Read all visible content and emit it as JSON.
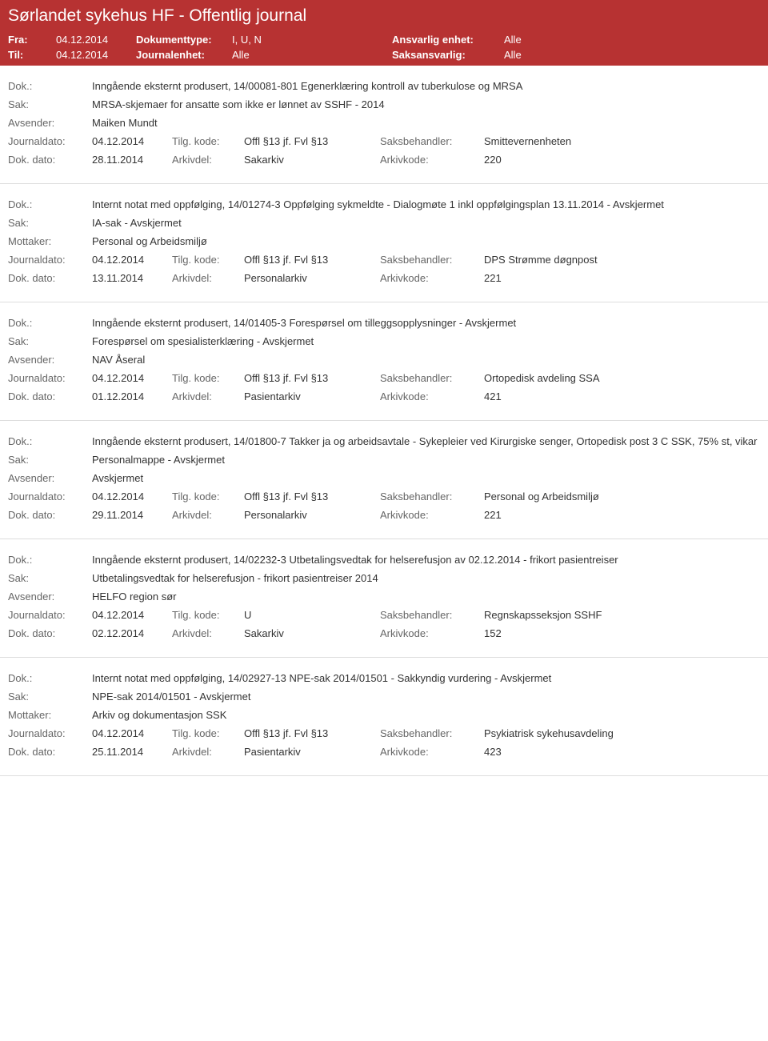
{
  "colors": {
    "header_bg": "#b73232",
    "header_text": "#ffffff",
    "body_text": "#333333",
    "label_text": "#666666",
    "border": "#dddddd"
  },
  "header": {
    "title": "Sørlandet sykehus HF - Offentlig journal",
    "fra_label": "Fra:",
    "fra_value": "04.12.2014",
    "til_label": "Til:",
    "til_value": "04.12.2014",
    "doktype_label": "Dokumenttype:",
    "doktype_value": "I, U, N",
    "journalenhet_label": "Journalenhet:",
    "journalenhet_value": "Alle",
    "ansvarlig_label": "Ansvarlig enhet:",
    "ansvarlig_value": "Alle",
    "saksansvarlig_label": "Saksansvarlig:",
    "saksansvarlig_value": "Alle"
  },
  "labels": {
    "dok": "Dok.:",
    "sak": "Sak:",
    "avsender": "Avsender:",
    "mottaker": "Mottaker:",
    "journaldato": "Journaldato:",
    "tilgkode": "Tilg. kode:",
    "saksbehandler": "Saksbehandler:",
    "dokdato": "Dok. dato:",
    "arkivdel": "Arkivdel:",
    "arkivkode": "Arkivkode:"
  },
  "entries": [
    {
      "dok": "Inngående eksternt produsert, 14/00081-801 Egenerklæring kontroll av tuberkulose og MRSA",
      "sak": "MRSA-skjemaer for ansatte som ikke er lønnet av SSHF - 2014",
      "party_label": "Avsender:",
      "party": "Maiken Mundt",
      "journaldato": "04.12.2014",
      "tilgkode": "Offl §13 jf. Fvl §13",
      "saksbehandler": "Smittevernenheten",
      "dokdato": "28.11.2014",
      "arkivdel": "Sakarkiv",
      "arkivkode": "220"
    },
    {
      "dok": "Internt notat med oppfølging, 14/01274-3 Oppfølging sykmeldte - Dialogmøte 1 inkl oppfølgingsplan 13.11.2014 - Avskjermet",
      "sak": "IA-sak - Avskjermet",
      "party_label": "Mottaker:",
      "party": "Personal og Arbeidsmiljø",
      "journaldato": "04.12.2014",
      "tilgkode": "Offl §13 jf. Fvl §13",
      "saksbehandler": "DPS Strømme døgnpost",
      "dokdato": "13.11.2014",
      "arkivdel": "Personalarkiv",
      "arkivkode": "221"
    },
    {
      "dok": "Inngående eksternt produsert, 14/01405-3 Forespørsel om tilleggsopplysninger - Avskjermet",
      "sak": "Forespørsel om spesialisterklæring - Avskjermet",
      "party_label": "Avsender:",
      "party": "NAV Åseral",
      "journaldato": "04.12.2014",
      "tilgkode": "Offl §13 jf. Fvl §13",
      "saksbehandler": "Ortopedisk avdeling SSA",
      "dokdato": "01.12.2014",
      "arkivdel": "Pasientarkiv",
      "arkivkode": "421"
    },
    {
      "dok": "Inngående eksternt produsert, 14/01800-7 Takker ja og arbeidsavtale - Sykepleier ved Kirurgiske senger, Ortopedisk post 3 C SSK, 75% st, vikar",
      "sak": "Personalmappe - Avskjermet",
      "party_label": "Avsender:",
      "party": "Avskjermet",
      "journaldato": "04.12.2014",
      "tilgkode": "Offl §13 jf. Fvl §13",
      "saksbehandler": "Personal og Arbeidsmiljø",
      "dokdato": "29.11.2014",
      "arkivdel": "Personalarkiv",
      "arkivkode": "221"
    },
    {
      "dok": "Inngående eksternt produsert, 14/02232-3 Utbetalingsvedtak for helserefusjon av 02.12.2014 - frikort pasientreiser",
      "sak": "Utbetalingsvedtak for helserefusjon - frikort pasientreiser 2014",
      "party_label": "Avsender:",
      "party": "HELFO region sør",
      "journaldato": "04.12.2014",
      "tilgkode": "U",
      "saksbehandler": "Regnskapsseksjon SSHF",
      "dokdato": "02.12.2014",
      "arkivdel": "Sakarkiv",
      "arkivkode": "152"
    },
    {
      "dok": "Internt notat med oppfølging, 14/02927-13 NPE-sak 2014/01501 - Sakkyndig vurdering - Avskjermet",
      "sak": "NPE-sak 2014/01501 - Avskjermet",
      "party_label": "Mottaker:",
      "party": "Arkiv og dokumentasjon SSK",
      "journaldato": "04.12.2014",
      "tilgkode": "Offl §13 jf. Fvl §13",
      "saksbehandler": "Psykiatrisk sykehusavdeling",
      "dokdato": "25.11.2014",
      "arkivdel": "Pasientarkiv",
      "arkivkode": "423"
    }
  ]
}
